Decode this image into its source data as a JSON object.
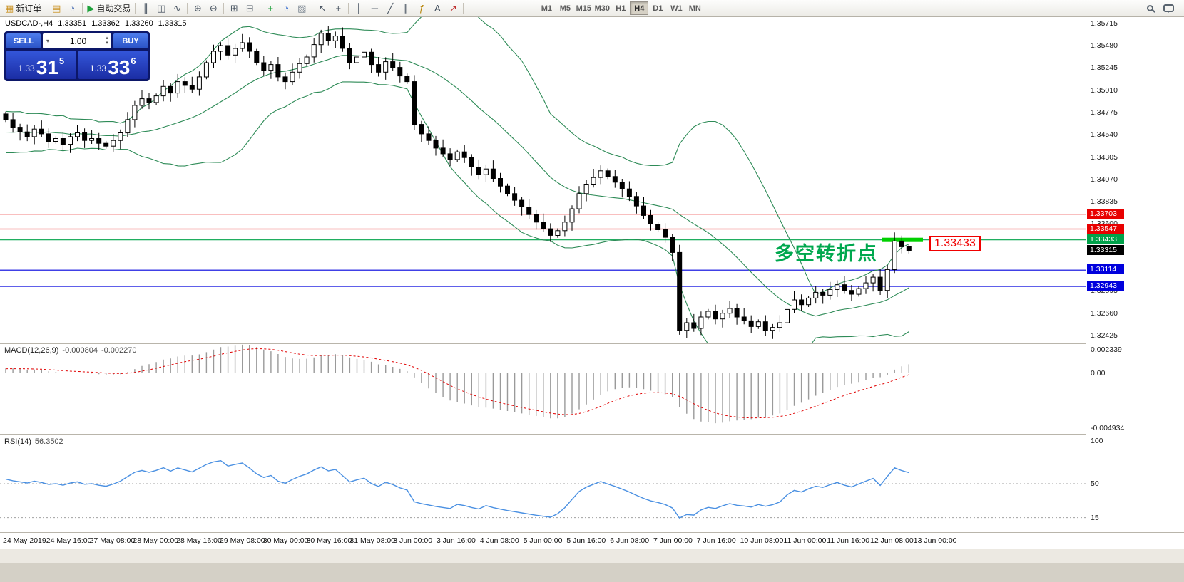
{
  "toolbar": {
    "items": [
      {
        "type": "button",
        "name": "new-order-button",
        "glyph": "▦",
        "glyph_color": "#c98f1c",
        "label": "新订单"
      },
      {
        "type": "sep"
      },
      {
        "type": "icon",
        "name": "new-chart-icon",
        "glyph": "▤",
        "glyph_color": "#c98f1c"
      },
      {
        "type": "icon",
        "name": "profiles-icon",
        "glyph": "◔",
        "glyph_color": "#4a6fb5"
      },
      {
        "type": "sep"
      },
      {
        "type": "button",
        "name": "auto-trading-button",
        "glyph": "▶",
        "glyph_color": "#1da13a",
        "label": "自动交易"
      },
      {
        "type": "sep"
      },
      {
        "type": "icon",
        "name": "bar-chart-icon",
        "glyph": "║"
      },
      {
        "type": "icon",
        "name": "candlestick-chart-icon",
        "glyph": "◫"
      },
      {
        "type": "icon",
        "name": "line-chart-icon",
        "glyph": "∿"
      },
      {
        "type": "sep"
      },
      {
        "type": "icon",
        "name": "zoom-in-icon",
        "glyph": "⊕"
      },
      {
        "type": "icon",
        "name": "zoom-out-icon",
        "glyph": "⊖"
      },
      {
        "type": "sep"
      },
      {
        "type": "icon",
        "name": "tile-windows-icon",
        "glyph": "⊞"
      },
      {
        "type": "icon",
        "name": "cascade-windows-icon",
        "glyph": "⊟"
      },
      {
        "type": "sep"
      },
      {
        "type": "icon",
        "name": "add-indicator-icon",
        "glyph": "+",
        "glyph_color": "#1da13a"
      },
      {
        "type": "icon",
        "name": "periods-icon",
        "glyph": "◔",
        "glyph_color": "#3a6fd0"
      },
      {
        "type": "icon",
        "name": "templates-icon",
        "glyph": "▧",
        "glyph_color": "#6f7b88"
      },
      {
        "type": "sep"
      },
      {
        "type": "icon",
        "name": "cursor-icon",
        "glyph": "↖"
      },
      {
        "type": "icon",
        "name": "crosshair-icon",
        "glyph": "+"
      },
      {
        "type": "sep"
      },
      {
        "type": "icon",
        "name": "vertical-line-icon",
        "glyph": "│"
      },
      {
        "type": "icon",
        "name": "horizontal-line-icon",
        "glyph": "─"
      },
      {
        "type": "icon",
        "name": "trendline-icon",
        "glyph": "╱"
      },
      {
        "type": "icon",
        "name": "channel-icon",
        "glyph": "∥"
      },
      {
        "type": "icon",
        "name": "fibonacci-icon",
        "glyph": "ƒ",
        "glyph_color": "#b8860b"
      },
      {
        "type": "icon",
        "name": "text-icon",
        "glyph": "A"
      },
      {
        "type": "icon",
        "name": "arrows-icon",
        "glyph": "↗",
        "glyph_color": "#c03030"
      },
      {
        "type": "sep"
      }
    ],
    "timeframes": {
      "items": [
        "M1",
        "M5",
        "M15",
        "M30",
        "H1",
        "H4",
        "D1",
        "W1",
        "MN"
      ],
      "active": "H4"
    }
  },
  "chart": {
    "header": {
      "symbol": "USDCAD-,H4",
      "open": "1.33351",
      "high": "1.33362",
      "low": "1.33260",
      "close": "1.33315"
    },
    "trade_panel": {
      "sell_label": "SELL",
      "buy_label": "BUY",
      "volume": "1.00",
      "sell_price": {
        "prefix": "1.33",
        "big": "31",
        "sup": "5"
      },
      "buy_price": {
        "prefix": "1.33",
        "big": "33",
        "sup": "6"
      }
    },
    "annotation": {
      "text": "多空转折点",
      "price_label": "1.33433",
      "marker_price": 1.33433,
      "marker_color": "#00d000"
    },
    "price_axis": {
      "regular": [
        "1.35715",
        "1.35480",
        "1.35245",
        "1.35010",
        "1.34775",
        "1.34540",
        "1.34305",
        "1.34070",
        "1.33835",
        "1.33600",
        "1.32895",
        "1.32660",
        "1.32425"
      ],
      "levels": [
        {
          "value": "1.33703",
          "price": 1.33703,
          "color": "#e80000",
          "type": "line"
        },
        {
          "value": "1.33547",
          "price": 1.33547,
          "color": "#e80000",
          "type": "line"
        },
        {
          "value": "1.33433",
          "price": 1.33433,
          "color": "#00a24a",
          "type": "line"
        },
        {
          "value": "1.33315",
          "price": 1.33315,
          "color": "#000000",
          "type": "current-price"
        },
        {
          "value": "1.33114",
          "price": 1.33114,
          "color": "#0000dd",
          "type": "line"
        },
        {
          "value": "1.32943",
          "price": 1.32943,
          "color": "#0000dd",
          "type": "line"
        }
      ]
    }
  },
  "macd": {
    "name": "MACD(12,26,9)",
    "value1": "-0.000804",
    "value2": "-0.002270",
    "axis": [
      "0.002339",
      "0.00",
      "-0.004934"
    ]
  },
  "rsi": {
    "name": "RSI(14)",
    "value": "56.3502",
    "axis": [
      "100",
      "50",
      "15"
    ],
    "levels": [
      50,
      15
    ]
  },
  "time_axis": [
    "24 May 2019",
    "24 May 16:00",
    "27 May 08:00",
    "28 May 00:00",
    "28 May 16:00",
    "29 May 08:00",
    "30 May 00:00",
    "30 May 16:00",
    "31 May 08:00",
    "3 Jun 00:00",
    "3 Jun 16:00",
    "4 Jun 08:00",
    "5 Jun 00:00",
    "5 Jun 16:00",
    "6 Jun 08:00",
    "7 Jun 00:00",
    "7 Jun 16:00",
    "10 Jun 08:00",
    "11 Jun 00:00",
    "11 Jun 16:00",
    "12 Jun 08:00",
    "13 Jun 00:00"
  ],
  "chart_data": {
    "type": "candlestick",
    "symbol": "USDCAD",
    "timeframe": "H4",
    "price_range": {
      "top": 1.3578,
      "bottom": 1.3235
    },
    "bollinger": {
      "period": 20,
      "deviation": 2,
      "color": "#2e8b57"
    },
    "macd_params": {
      "fast": 12,
      "slow": 26,
      "signal": 9,
      "current": -0.000804,
      "signal_current": -0.00227,
      "range": [
        -0.004934,
        0.002339
      ],
      "histogram_color": "#9a9a9a",
      "signal_color": "#e00000"
    },
    "rsi_params": {
      "period": 14,
      "current": 56.3502,
      "color": "#4a90e2"
    },
    "history_closes": [
      1.344,
      1.3465,
      1.345,
      1.3472,
      1.3445,
      1.346,
      1.3438,
      1.3468,
      1.3452,
      1.3475,
      1.3442,
      1.3458,
      1.3446,
      1.347,
      1.3455,
      1.3448,
      1.3466,
      1.3444,
      1.346,
      1.3452
    ],
    "closes": [
      1.347,
      1.3462,
      1.3457,
      1.3452,
      1.346,
      1.3455,
      1.3447,
      1.345,
      1.3444,
      1.3452,
      1.3456,
      1.3448,
      1.345,
      1.3445,
      1.3442,
      1.3448,
      1.3456,
      1.347,
      1.3485,
      1.3492,
      1.3488,
      1.3495,
      1.3505,
      1.3498,
      1.351,
      1.3506,
      1.3502,
      1.3515,
      1.353,
      1.3542,
      1.3548,
      1.3538,
      1.3545,
      1.3551,
      1.3542,
      1.353,
      1.3522,
      1.3528,
      1.3515,
      1.351,
      1.352,
      1.3529,
      1.3536,
      1.3549,
      1.3561,
      1.3553,
      1.3558,
      1.3545,
      1.353,
      1.3536,
      1.3541,
      1.3528,
      1.352,
      1.3531,
      1.3525,
      1.3516,
      1.351,
      1.3465,
      1.3455,
      1.3448,
      1.344,
      1.3434,
      1.3428,
      1.3436,
      1.343,
      1.342,
      1.3412,
      1.3418,
      1.3408,
      1.34,
      1.3392,
      1.3385,
      1.3378,
      1.337,
      1.3362,
      1.3355,
      1.3348,
      1.3353,
      1.3362,
      1.3376,
      1.3392,
      1.3402,
      1.3409,
      1.3416,
      1.341,
      1.3404,
      1.3397,
      1.3389,
      1.3379,
      1.3369,
      1.336,
      1.3354,
      1.3346,
      1.333,
      1.3248,
      1.3256,
      1.325,
      1.3262,
      1.3268,
      1.326,
      1.3266,
      1.3271,
      1.3262,
      1.3258,
      1.3252,
      1.3257,
      1.3248,
      1.3251,
      1.3256,
      1.327,
      1.328,
      1.3275,
      1.3282,
      1.3288,
      1.3285,
      1.3291,
      1.3296,
      1.329,
      1.3286,
      1.3292,
      1.3298,
      1.3304,
      1.329,
      1.3312,
      1.3342,
      1.3336,
      1.33315
    ]
  }
}
